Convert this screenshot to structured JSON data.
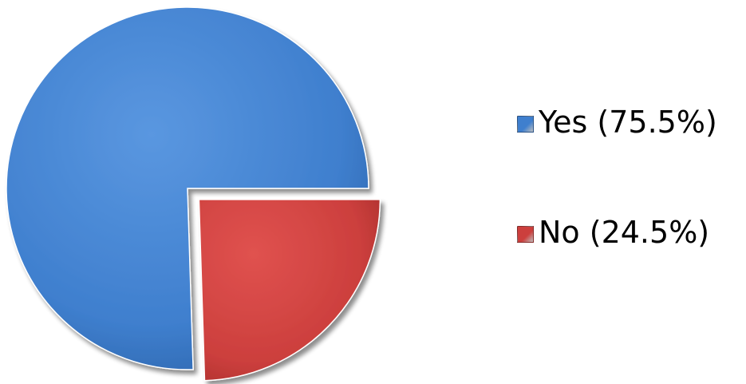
{
  "chart_data": {
    "type": "pie",
    "title": "",
    "slices": [
      {
        "label": "Yes (75.5%)",
        "value": 75.5,
        "color": "#3f7fce",
        "exploded": false
      },
      {
        "label": "No (24.5%)",
        "value": 24.5,
        "color": "#cc3f3d",
        "exploded": true
      }
    ],
    "legend_position": "right"
  }
}
